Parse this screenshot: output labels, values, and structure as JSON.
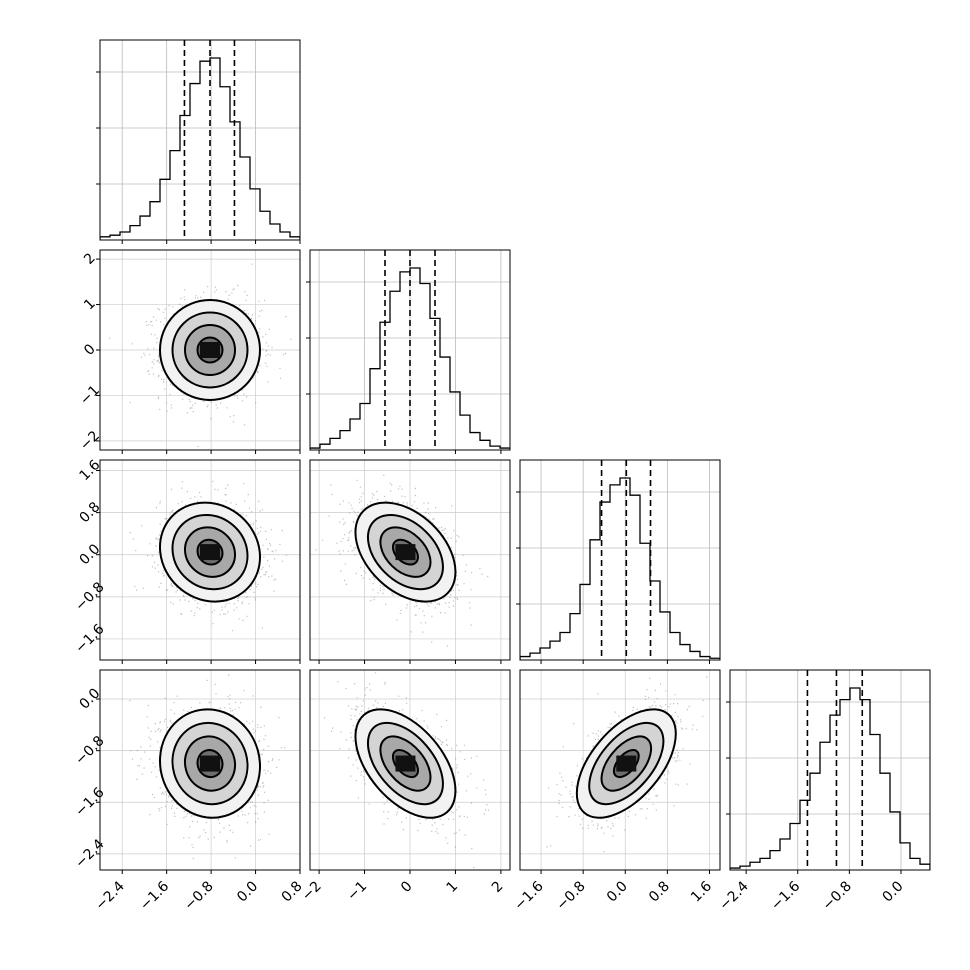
{
  "chart_data": {
    "type": "corner",
    "grid": true,
    "parameters": [
      {
        "lim": [
          -2.8,
          0.8
        ],
        "ticks": [
          "-2.4",
          "-1.6",
          "-0.8",
          "0.0",
          "0.8"
        ],
        "quantiles": [
          -1.28,
          -0.82,
          -0.38
        ]
      },
      {
        "lim": [
          -2.2,
          2.2
        ],
        "ticks": [
          "-2",
          "-1",
          "0",
          "1",
          "2"
        ],
        "quantiles": [
          -0.55,
          0.0,
          0.55
        ]
      },
      {
        "lim": [
          -2.0,
          1.8
        ],
        "ticks": [
          "-1.6",
          "-0.8",
          "0.0",
          "0.8",
          "1.6"
        ],
        "quantiles": [
          -0.45,
          0.02,
          0.48
        ]
      },
      {
        "lim": [
          -2.65,
          0.45
        ],
        "ticks": [
          "-2.4",
          "-1.6",
          "-0.8",
          "0.0"
        ],
        "quantiles": [
          -1.45,
          -1.0,
          -0.6
        ]
      }
    ],
    "histograms": [
      {
        "row": 0,
        "counts": [
          2,
          3,
          5,
          9,
          15,
          24,
          38,
          56,
          78,
          98,
          112,
          114,
          96,
          74,
          52,
          32,
          18,
          10,
          5,
          2
        ]
      },
      {
        "row": 1,
        "counts": [
          1,
          3,
          6,
          10,
          16,
          24,
          42,
          66,
          82,
          92,
          94,
          86,
          68,
          48,
          30,
          18,
          9,
          5,
          2,
          1
        ]
      },
      {
        "row": 2,
        "counts": [
          2,
          4,
          7,
          11,
          16,
          27,
          44,
          70,
          92,
          102,
          106,
          96,
          68,
          46,
          28,
          16,
          9,
          5,
          2,
          1
        ]
      },
      {
        "row": 3,
        "counts": [
          1,
          2,
          4,
          6,
          10,
          16,
          24,
          36,
          50,
          66,
          80,
          88,
          94,
          88,
          70,
          50,
          30,
          14,
          6,
          3
        ]
      }
    ],
    "correlations": [
      {
        "row": 1,
        "col": 0,
        "mean_x": -0.82,
        "mean_y": 0.0,
        "sd_x": 0.45,
        "sd_y": 0.55,
        "rho": 0.0
      },
      {
        "row": 2,
        "col": 0,
        "mean_x": -0.82,
        "mean_y": 0.05,
        "sd_x": 0.45,
        "sd_y": 0.47,
        "rho": -0.1
      },
      {
        "row": 2,
        "col": 1,
        "mean_x": -0.1,
        "mean_y": 0.05,
        "sd_x": 0.55,
        "sd_y": 0.47,
        "rho": -0.4
      },
      {
        "row": 3,
        "col": 0,
        "mean_x": -0.82,
        "mean_y": -1.0,
        "sd_x": 0.45,
        "sd_y": 0.42,
        "rho": -0.05
      },
      {
        "row": 3,
        "col": 1,
        "mean_x": -0.1,
        "mean_y": -1.0,
        "sd_x": 0.55,
        "sd_y": 0.42,
        "rho": -0.5
      },
      {
        "row": 3,
        "col": 2,
        "mean_x": 0.02,
        "mean_y": -1.0,
        "sd_x": 0.47,
        "sd_y": 0.42,
        "rho": 0.55
      }
    ]
  }
}
